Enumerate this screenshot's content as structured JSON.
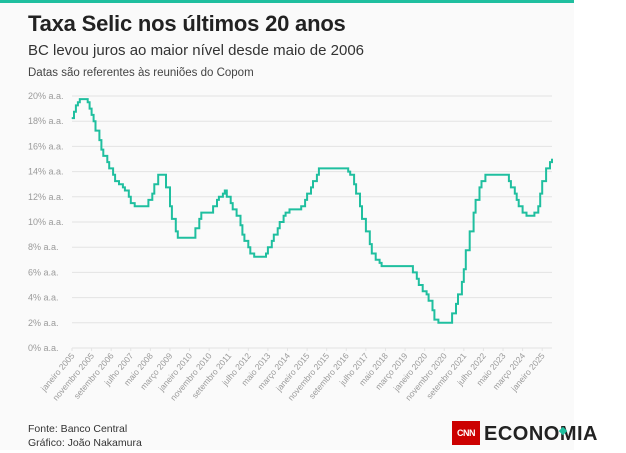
{
  "header": {
    "title": "Taxa Selic nos últimos 20 anos",
    "subtitle": "BC levou juros ao maior nível desde maio de 2006",
    "note": "Datas são referentes às reuniões do Copom"
  },
  "footer": {
    "source": "Fonte: Banco Central",
    "credit": "Gráfico: João Nakamura",
    "logo_mark": "CNN",
    "logo_word": "ECONOMIA"
  },
  "colors": {
    "line": "#1fbf9f",
    "grid": "#e3e3e3",
    "tick_text": "#9a9a9a",
    "accent": "#1fbf9f",
    "brand_red": "#cc0000"
  },
  "chart_data": {
    "type": "line",
    "title": "Taxa Selic nos últimos 20 anos",
    "ylim": [
      0,
      20
    ],
    "grid": true,
    "y_ticks": [
      {
        "value": 20,
        "label": "20% a.a."
      },
      {
        "value": 18,
        "label": "18% a.a."
      },
      {
        "value": 16,
        "label": "16% a.a."
      },
      {
        "value": 14,
        "label": "14% a.a."
      },
      {
        "value": 12,
        "label": "12% a.a."
      },
      {
        "value": 10,
        "label": "10% a.a."
      },
      {
        "value": 8,
        "label": "8% a.a."
      },
      {
        "value": 6,
        "label": "6% a.a."
      },
      {
        "value": 4,
        "label": "4% a.a."
      },
      {
        "value": 2,
        "label": "2% a.a."
      },
      {
        "value": 0,
        "label": "0% a.a."
      }
    ],
    "x_ticks": [
      {
        "date": "2005-01",
        "label": "janeiro 2005"
      },
      {
        "date": "2005-11",
        "label": "novembro 2005"
      },
      {
        "date": "2006-09",
        "label": "setembro 2006"
      },
      {
        "date": "2007-07",
        "label": "julho 2007"
      },
      {
        "date": "2008-05",
        "label": "maio 2008"
      },
      {
        "date": "2009-03",
        "label": "março 2009"
      },
      {
        "date": "2010-01",
        "label": "janeiro 2010"
      },
      {
        "date": "2010-11",
        "label": "novembro 2010"
      },
      {
        "date": "2011-09",
        "label": "setembro 2011"
      },
      {
        "date": "2012-07",
        "label": "julho 2012"
      },
      {
        "date": "2013-05",
        "label": "maio 2013"
      },
      {
        "date": "2014-03",
        "label": "março 2014"
      },
      {
        "date": "2015-01",
        "label": "janeiro 2015"
      },
      {
        "date": "2015-11",
        "label": "novembro 2015"
      },
      {
        "date": "2016-09",
        "label": "setembro 2016"
      },
      {
        "date": "2017-07",
        "label": "julho 2017"
      },
      {
        "date": "2018-05",
        "label": "maio 2018"
      },
      {
        "date": "2019-03",
        "label": "março 2019"
      },
      {
        "date": "2020-01",
        "label": "janeiro 2020"
      },
      {
        "date": "2020-11",
        "label": "novembro 2020"
      },
      {
        "date": "2021-09",
        "label": "setembro 2021"
      },
      {
        "date": "2022-07",
        "label": "julho 2022"
      },
      {
        "date": "2023-05",
        "label": "maio 2023"
      },
      {
        "date": "2024-03",
        "label": "março 2024"
      },
      {
        "date": "2025-01",
        "label": "janeiro 2025"
      }
    ],
    "series": [
      {
        "points": [
          {
            "date": "2005-01",
            "value": 18.25
          },
          {
            "date": "2005-02",
            "value": 18.75
          },
          {
            "date": "2005-03",
            "value": 19.25
          },
          {
            "date": "2005-04",
            "value": 19.5
          },
          {
            "date": "2005-05",
            "value": 19.75
          },
          {
            "date": "2005-09",
            "value": 19.5
          },
          {
            "date": "2005-10",
            "value": 19.0
          },
          {
            "date": "2005-11",
            "value": 18.5
          },
          {
            "date": "2005-12",
            "value": 18.0
          },
          {
            "date": "2006-01",
            "value": 17.25
          },
          {
            "date": "2006-03",
            "value": 16.5
          },
          {
            "date": "2006-04",
            "value": 15.75
          },
          {
            "date": "2006-05",
            "value": 15.25
          },
          {
            "date": "2006-07",
            "value": 14.75
          },
          {
            "date": "2006-08",
            "value": 14.25
          },
          {
            "date": "2006-10",
            "value": 13.75
          },
          {
            "date": "2006-11",
            "value": 13.25
          },
          {
            "date": "2007-01",
            "value": 13.0
          },
          {
            "date": "2007-03",
            "value": 12.75
          },
          {
            "date": "2007-04",
            "value": 12.5
          },
          {
            "date": "2007-06",
            "value": 12.0
          },
          {
            "date": "2007-07",
            "value": 11.5
          },
          {
            "date": "2007-09",
            "value": 11.25
          },
          {
            "date": "2008-04",
            "value": 11.75
          },
          {
            "date": "2008-06",
            "value": 12.25
          },
          {
            "date": "2008-07",
            "value": 13.0
          },
          {
            "date": "2008-09",
            "value": 13.75
          },
          {
            "date": "2009-01",
            "value": 12.75
          },
          {
            "date": "2009-03",
            "value": 11.25
          },
          {
            "date": "2009-04",
            "value": 10.25
          },
          {
            "date": "2009-06",
            "value": 9.25
          },
          {
            "date": "2009-07",
            "value": 8.75
          },
          {
            "date": "2010-04",
            "value": 9.5
          },
          {
            "date": "2010-06",
            "value": 10.25
          },
          {
            "date": "2010-07",
            "value": 10.75
          },
          {
            "date": "2011-01",
            "value": 11.25
          },
          {
            "date": "2011-03",
            "value": 11.75
          },
          {
            "date": "2011-04",
            "value": 12.0
          },
          {
            "date": "2011-06",
            "value": 12.25
          },
          {
            "date": "2011-07",
            "value": 12.5
          },
          {
            "date": "2011-08",
            "value": 12.0
          },
          {
            "date": "2011-10",
            "value": 11.5
          },
          {
            "date": "2011-11",
            "value": 11.0
          },
          {
            "date": "2012-01",
            "value": 10.5
          },
          {
            "date": "2012-03",
            "value": 9.75
          },
          {
            "date": "2012-04",
            "value": 9.0
          },
          {
            "date": "2012-05",
            "value": 8.5
          },
          {
            "date": "2012-07",
            "value": 8.0
          },
          {
            "date": "2012-08",
            "value": 7.5
          },
          {
            "date": "2012-10",
            "value": 7.25
          },
          {
            "date": "2013-04",
            "value": 7.5
          },
          {
            "date": "2013-05",
            "value": 8.0
          },
          {
            "date": "2013-07",
            "value": 8.5
          },
          {
            "date": "2013-08",
            "value": 9.0
          },
          {
            "date": "2013-10",
            "value": 9.5
          },
          {
            "date": "2013-11",
            "value": 10.0
          },
          {
            "date": "2014-01",
            "value": 10.5
          },
          {
            "date": "2014-02",
            "value": 10.75
          },
          {
            "date": "2014-04",
            "value": 11.0
          },
          {
            "date": "2014-10",
            "value": 11.25
          },
          {
            "date": "2014-12",
            "value": 11.75
          },
          {
            "date": "2015-01",
            "value": 12.25
          },
          {
            "date": "2015-03",
            "value": 12.75
          },
          {
            "date": "2015-04",
            "value": 13.25
          },
          {
            "date": "2015-06",
            "value": 13.75
          },
          {
            "date": "2015-07",
            "value": 14.25
          },
          {
            "date": "2016-10",
            "value": 14.0
          },
          {
            "date": "2016-11",
            "value": 13.75
          },
          {
            "date": "2017-01",
            "value": 13.0
          },
          {
            "date": "2017-02",
            "value": 12.25
          },
          {
            "date": "2017-04",
            "value": 11.25
          },
          {
            "date": "2017-05",
            "value": 10.25
          },
          {
            "date": "2017-07",
            "value": 9.25
          },
          {
            "date": "2017-09",
            "value": 8.25
          },
          {
            "date": "2017-10",
            "value": 7.5
          },
          {
            "date": "2017-12",
            "value": 7.0
          },
          {
            "date": "2018-02",
            "value": 6.75
          },
          {
            "date": "2018-03",
            "value": 6.5
          },
          {
            "date": "2019-07",
            "value": 6.0
          },
          {
            "date": "2019-09",
            "value": 5.5
          },
          {
            "date": "2019-10",
            "value": 5.0
          },
          {
            "date": "2019-12",
            "value": 4.5
          },
          {
            "date": "2020-02",
            "value": 4.25
          },
          {
            "date": "2020-03",
            "value": 3.75
          },
          {
            "date": "2020-05",
            "value": 3.0
          },
          {
            "date": "2020-06",
            "value": 2.25
          },
          {
            "date": "2020-08",
            "value": 2.0
          },
          {
            "date": "2021-03",
            "value": 2.75
          },
          {
            "date": "2021-05",
            "value": 3.5
          },
          {
            "date": "2021-06",
            "value": 4.25
          },
          {
            "date": "2021-08",
            "value": 5.25
          },
          {
            "date": "2021-09",
            "value": 6.25
          },
          {
            "date": "2021-10",
            "value": 7.75
          },
          {
            "date": "2021-12",
            "value": 9.25
          },
          {
            "date": "2022-02",
            "value": 10.75
          },
          {
            "date": "2022-03",
            "value": 11.75
          },
          {
            "date": "2022-05",
            "value": 12.75
          },
          {
            "date": "2022-06",
            "value": 13.25
          },
          {
            "date": "2022-08",
            "value": 13.75
          },
          {
            "date": "2023-08",
            "value": 13.25
          },
          {
            "date": "2023-09",
            "value": 12.75
          },
          {
            "date": "2023-11",
            "value": 12.25
          },
          {
            "date": "2023-12",
            "value": 11.75
          },
          {
            "date": "2024-01",
            "value": 11.25
          },
          {
            "date": "2024-03",
            "value": 10.75
          },
          {
            "date": "2024-05",
            "value": 10.5
          },
          {
            "date": "2024-09",
            "value": 10.75
          },
          {
            "date": "2024-11",
            "value": 11.25
          },
          {
            "date": "2024-12",
            "value": 12.25
          },
          {
            "date": "2025-01",
            "value": 13.25
          },
          {
            "date": "2025-03",
            "value": 14.25
          },
          {
            "date": "2025-05",
            "value": 14.75
          },
          {
            "date": "2025-06",
            "value": 15.0
          }
        ]
      }
    ]
  }
}
